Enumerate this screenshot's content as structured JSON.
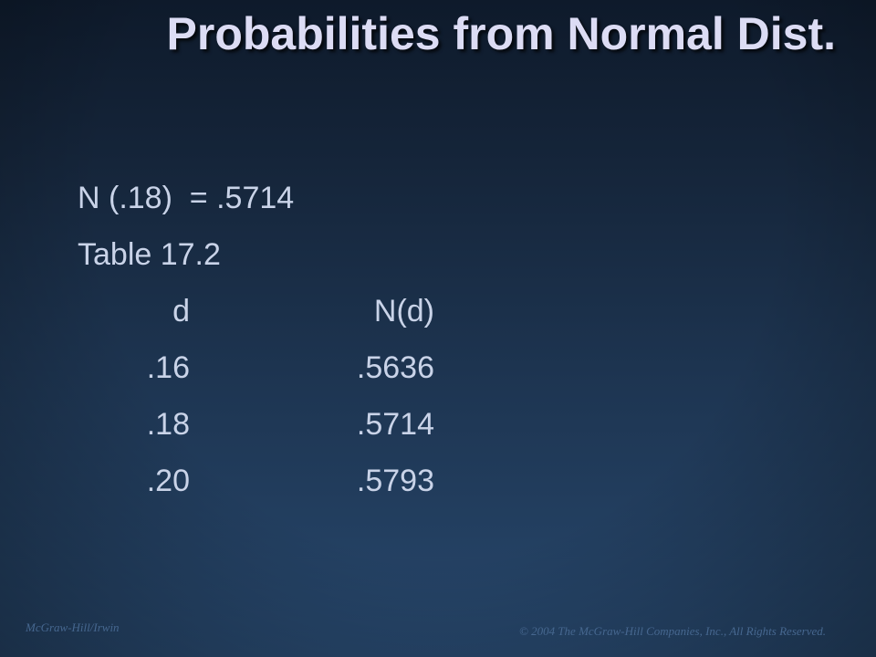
{
  "slide": {
    "title": "Probabilities from Normal Dist.",
    "lines": [
      "N (.18)  = .5714",
      "Table 17.2"
    ],
    "table": {
      "header": [
        "d",
        "N(d)"
      ],
      "rows": [
        [
          ".16",
          ".5636"
        ],
        [
          ".18",
          ".5714"
        ],
        [
          ".20",
          ".5793"
        ]
      ]
    },
    "footer": {
      "left": "McGraw-Hill/Irwin",
      "right": "© 2004 The McGraw-Hill Companies, Inc., All Rights Reserved."
    }
  }
}
